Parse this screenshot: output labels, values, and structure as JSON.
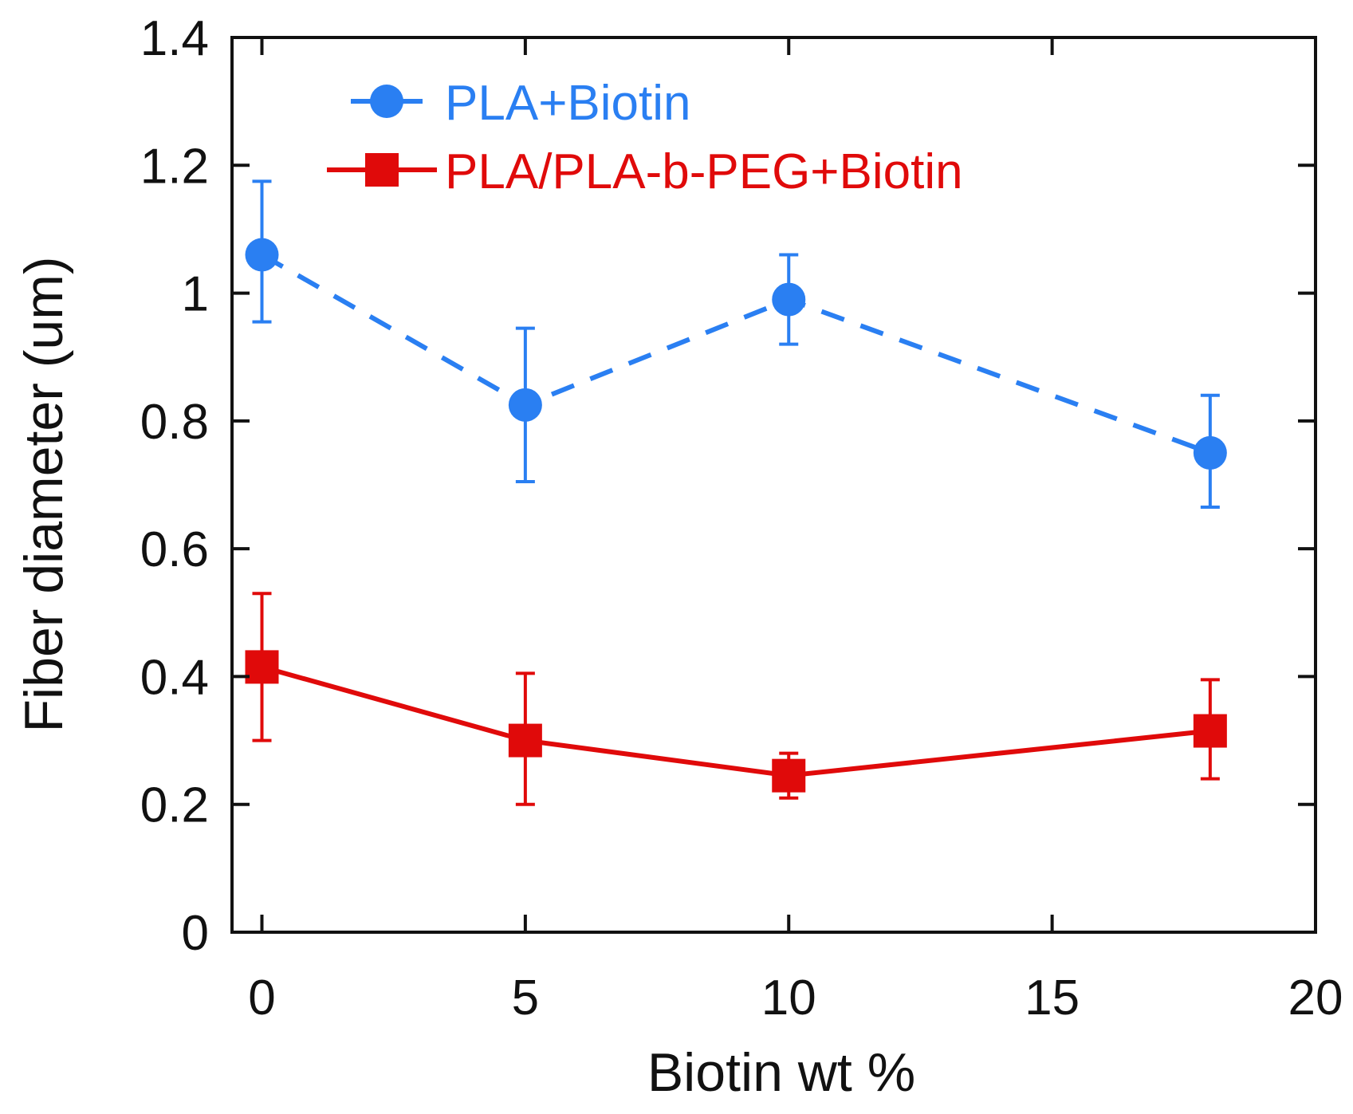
{
  "chart_data": {
    "type": "line",
    "title": "",
    "xlabel": "Biotin wt %",
    "ylabel": "Fiber diameter (um)",
    "xlim": [
      -1,
      20
    ],
    "ylim": [
      0,
      1.4
    ],
    "x_ticks": [
      0,
      5,
      10,
      15,
      20
    ],
    "y_ticks": [
      0,
      0.2,
      0.4,
      0.6,
      0.8,
      1,
      1.2,
      1.4
    ],
    "x_tick_labels": [
      "0",
      "5",
      "10",
      "15",
      "20"
    ],
    "y_tick_labels": [
      "0",
      "0.2",
      "0.4",
      "0.6",
      "0.8",
      "1",
      "1.2",
      "1.4"
    ],
    "grid": false,
    "legend_position": "top-left",
    "series": [
      {
        "name": "PLA+Biotin",
        "color": "#2a7ff2",
        "line_style": "dashed",
        "marker": "circle",
        "x": [
          0,
          5,
          10,
          18
        ],
        "y": [
          1.06,
          0.825,
          0.99,
          0.75
        ],
        "err_low": [
          0.955,
          0.705,
          0.92,
          0.665
        ],
        "err_high": [
          1.175,
          0.945,
          1.06,
          0.84
        ]
      },
      {
        "name": "PLA/PLA-b-PEG+Biotin",
        "color": "#e00a0a",
        "line_style": "solid",
        "marker": "square",
        "x": [
          0,
          5,
          10,
          18
        ],
        "y": [
          0.415,
          0.3,
          0.245,
          0.315
        ],
        "err_low": [
          0.3,
          0.2,
          0.21,
          0.24
        ],
        "err_high": [
          0.53,
          0.405,
          0.28,
          0.395
        ]
      }
    ]
  }
}
